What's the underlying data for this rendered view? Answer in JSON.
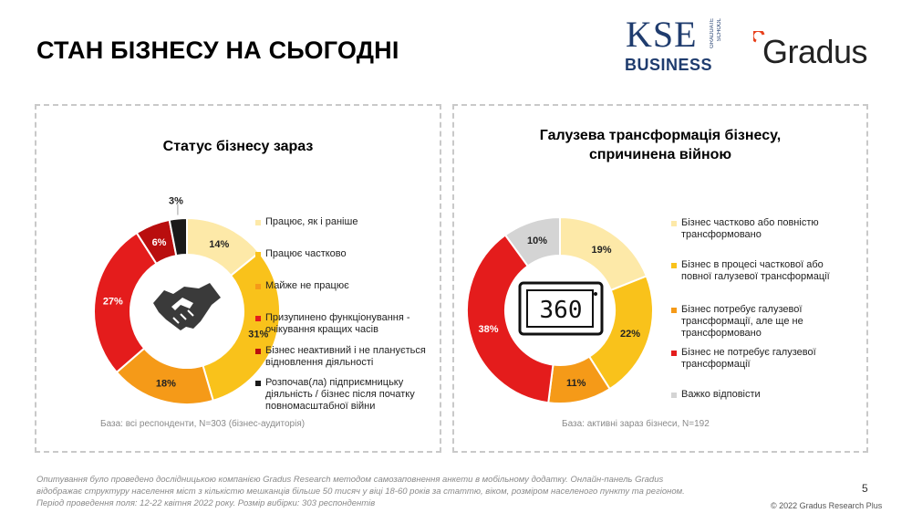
{
  "page": {
    "title": "СТАН БІЗНЕСУ НА СЬОГОДНІ",
    "page_number": "5",
    "copyright": "© 2022 Gradus Research Plus",
    "footnote": "Опитування було проведено дослідницькою компанією Gradus Research методом самозаповнення анкети в мобільному додатку. Онлайн-панель Gradus відображає структуру населення міст з кількістю мешканців більше 50 тисяч у віці 18-60 років за статтю, віком, розміром населеного пункту та регіоном. Період проведення поля: 12-22 квітня 2022 року. Розмір вибірки: 303 респондентів"
  },
  "logos": {
    "kse_main": "KSE",
    "kse_side_1": "GRADUATE",
    "kse_side_2": "SCHOOL",
    "kse_sub": "BUSINESS",
    "gradus": "Gradus"
  },
  "left_panel": {
    "base_note": "База: всі респонденти, N=303 (бізнес-аудиторія)",
    "center_icon": "handshake-icon"
  },
  "right_panel": {
    "base_note": "База: активні зараз бізнеси, N=192",
    "center_icon": "360-view-icon",
    "center_icon_text": "360"
  },
  "chart_data": [
    {
      "type": "pie",
      "donut": true,
      "title": "Статус бізнесу зараз",
      "legend_position": "right",
      "labels": [
        "Працює, як і раніше",
        "Працює частково",
        "Майже не працює",
        "Призупинено функціонування - очікування кращих часів",
        "Бізнес неактивний і не планується відновлення діяльності",
        "Розпочав(ла) підприємницьку діяльність / бізнес після початку повномасштабної війни"
      ],
      "values": [
        14,
        31,
        18,
        27,
        6,
        3
      ],
      "value_labels": [
        "14%",
        "31%",
        "18%",
        "27%",
        "6%",
        "3%"
      ],
      "colors": [
        "#fde9a8",
        "#f9c21b",
        "#f59a18",
        "#e41c1c",
        "#b90e0e",
        "#1a1a1a"
      ]
    },
    {
      "type": "pie",
      "donut": true,
      "title": "Галузева трансформація бізнесу, спричинена війною",
      "legend_position": "right",
      "labels": [
        "Бізнес частково або повністю трансформовано",
        "Бізнес в процесі часткової або повної галузевої трансформації",
        "Бізнес потребує галузевої трансформації, але ще не трансформовано",
        "Бізнес не потребує галузевої трансформації",
        "Важко відповісти"
      ],
      "values": [
        19,
        22,
        11,
        38,
        10
      ],
      "value_labels": [
        "19%",
        "22%",
        "11%",
        "38%",
        "10%"
      ],
      "colors": [
        "#fde9a8",
        "#f9c21b",
        "#f59a18",
        "#e41c1c",
        "#d4d4d4"
      ]
    }
  ]
}
